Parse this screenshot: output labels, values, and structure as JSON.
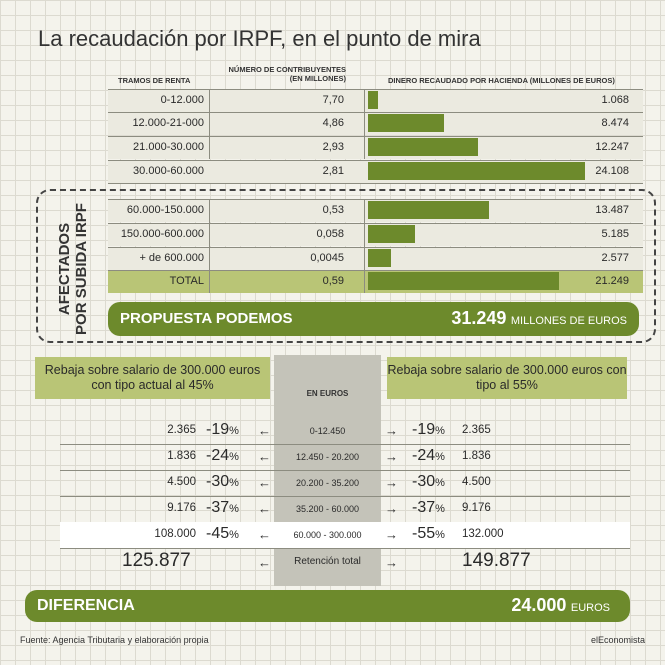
{
  "title": "La recaudación por IRPF, en el punto de mira",
  "header": {
    "tramos": "TRAMOS DE RENTA",
    "contribuyentes_1": "NÚMERO DE CONTRIBUYENTES",
    "contribuyentes_2": "(EN MILLONES)",
    "dinero": "DINERO RECAUDADO POR HACIENDA (MILLONES DE EUROS)"
  },
  "chart_data": {
    "type": "bar",
    "title": "La recaudación por IRPF, en el punto de mira",
    "columns": [
      "TRAMOS DE RENTA",
      "NÚMERO DE CONTRIBUYENTES (EN MILLONES)",
      "DINERO RECAUDADO POR HACIENDA (MILLONES DE EUROS)"
    ],
    "categories": [
      "0-12.000",
      "12.000-21-000",
      "21.000-30.000",
      "30.000-60.000",
      "60.000-150.000",
      "150.000-600.000",
      "+ de 600.000",
      "TOTAL"
    ],
    "contribuyentes_text": [
      "7,70",
      "4,86",
      "2,93",
      "2,81",
      "0,53",
      "0,058",
      "0,0045",
      "0,59"
    ],
    "values_text": [
      "1.068",
      "8.474",
      "12.247",
      "24.108",
      "13.487",
      "5.185",
      "2.577",
      "21.249"
    ],
    "values": [
      1068,
      8474,
      12247,
      24108,
      13487,
      5185,
      2577,
      21249
    ],
    "xlim": [
      0,
      24108
    ]
  },
  "afectados_label_1": "AFECTADOS",
  "afectados_label_2": "POR SUBIDA IRPF",
  "podemos": {
    "label": "PROPUESTA PODEMOS",
    "value": "31.249",
    "unit": "MILLONES DE EUROS"
  },
  "comparison": {
    "left_header": "Rebaja sobre salario de 300.000 euros con tipo actual al 45%",
    "right_header": "Rebaja sobre salario de 300.000 euros con tipo al 55%",
    "center_header": "EN EUROS",
    "rows": [
      {
        "left_amount": "2.365",
        "left_pct": "-19",
        "range": "0-12.450",
        "right_pct": "-19",
        "right_amount": "2.365"
      },
      {
        "left_amount": "1.836",
        "left_pct": "-24",
        "range": "12.450 - 20.200",
        "right_pct": "-24",
        "right_amount": "1.836"
      },
      {
        "left_amount": "4.500",
        "left_pct": "-30",
        "range": "20.200 - 35.200",
        "right_pct": "-30",
        "right_amount": "4.500"
      },
      {
        "left_amount": "9.176",
        "left_pct": "-37",
        "range": "35.200 - 60.000",
        "right_pct": "-37",
        "right_amount": "9.176"
      },
      {
        "left_amount": "108.000",
        "left_pct": "-45",
        "range": "60.000 - 300.000",
        "right_pct": "-55",
        "right_amount": "132.000"
      }
    ],
    "pct_symbol": "%",
    "arrow_left": "←",
    "arrow_right": "→",
    "total_left": "125.877",
    "total_label": "Retención total",
    "total_right": "149.877"
  },
  "diferencia": {
    "label": "DIFERENCIA",
    "value": "24.000",
    "unit": "EUROS"
  },
  "footer": {
    "source": "Fuente: Agencia Tributaria y elaboración propia",
    "brand": "elEconomista"
  },
  "colors": {
    "bar": "#6d8a2c",
    "light_green": "#b9c576",
    "grey_column": "#c4c3b9"
  }
}
